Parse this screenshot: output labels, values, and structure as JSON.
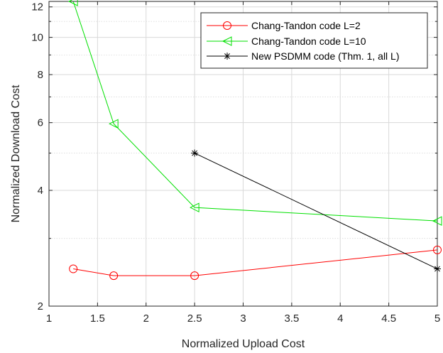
{
  "chart_data": {
    "type": "line",
    "xlabel": "Normalized Upload Cost",
    "ylabel": "Normalized Download Cost",
    "xlim": [
      1,
      5
    ],
    "ylim": [
      2,
      12.4
    ],
    "yscale": "log",
    "grid": true,
    "legend_position": "top-right",
    "x_ticks": [
      1,
      1.5,
      2,
      2.5,
      3,
      3.5,
      4,
      4.5,
      5
    ],
    "x_tick_labels": [
      "1",
      "1.5",
      "2",
      "2.5",
      "3",
      "3.5",
      "4",
      "4.5",
      "5"
    ],
    "y_ticks": [
      2,
      4,
      6,
      8,
      10,
      12
    ],
    "y_tick_labels": [
      "2",
      "4",
      "6",
      "8",
      "10",
      "12"
    ],
    "y_minor_ticks": [
      3,
      5,
      7,
      9,
      11
    ],
    "series": [
      {
        "name": "Chang-Tandon code L=2",
        "color": "#ff0000",
        "marker": "circle",
        "x": [
          1.25,
          1.6667,
          2.5,
          5
        ],
        "y": [
          2.5,
          2.4,
          2.4,
          2.8
        ]
      },
      {
        "name": "Chang-Tandon code L=10",
        "color": "#00e000",
        "marker": "triangle-left",
        "x": [
          1.25,
          1.6667,
          2.5,
          5
        ],
        "y": [
          12.4,
          5.96,
          3.61,
          3.33
        ]
      },
      {
        "name": "New PSDMM code (Thm. 1, all L)",
        "color": "#000000",
        "marker": "asterisk",
        "x": [
          2.5,
          5
        ],
        "y": [
          5,
          2.5
        ]
      }
    ]
  }
}
